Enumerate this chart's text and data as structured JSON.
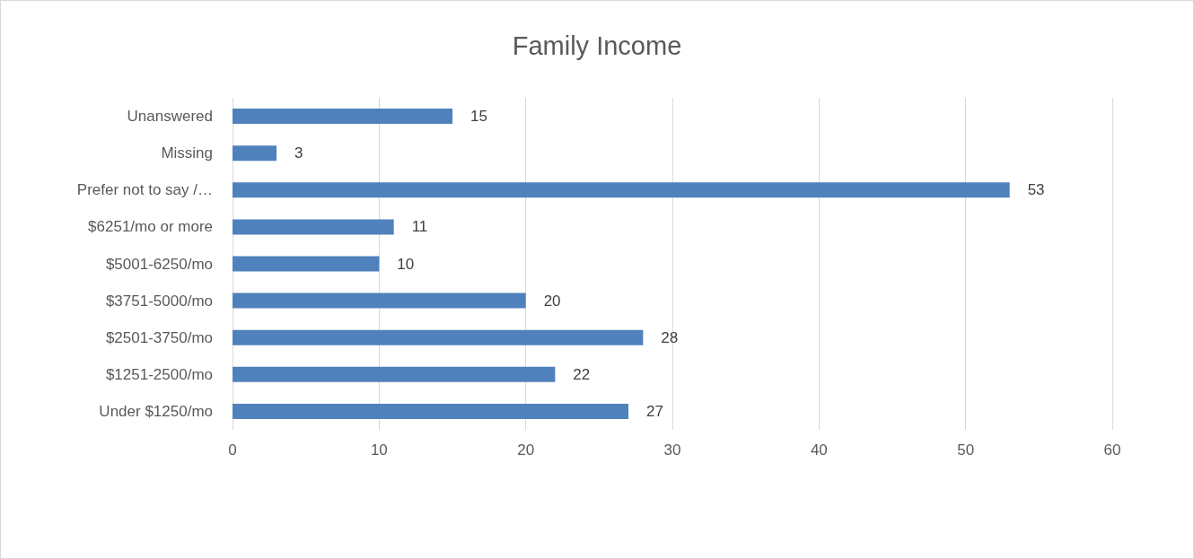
{
  "chart_data": {
    "type": "bar",
    "orientation": "horizontal",
    "title": "Family Income",
    "categories": [
      "Unanswered",
      "Missing",
      "Prefer not to say /…",
      "$6251/mo or more",
      "$5001-6250/mo",
      "$3751-5000/mo",
      "$2501-3750/mo",
      "$1251-2500/mo",
      "Under $1250/mo"
    ],
    "values": [
      15,
      3,
      53,
      11,
      10,
      20,
      28,
      22,
      27
    ],
    "color": "#4f81bd",
    "xlim": [
      0,
      60
    ],
    "xticks": [
      0,
      10,
      20,
      30,
      40,
      50,
      60
    ],
    "grid": "x",
    "data_labels": true
  }
}
